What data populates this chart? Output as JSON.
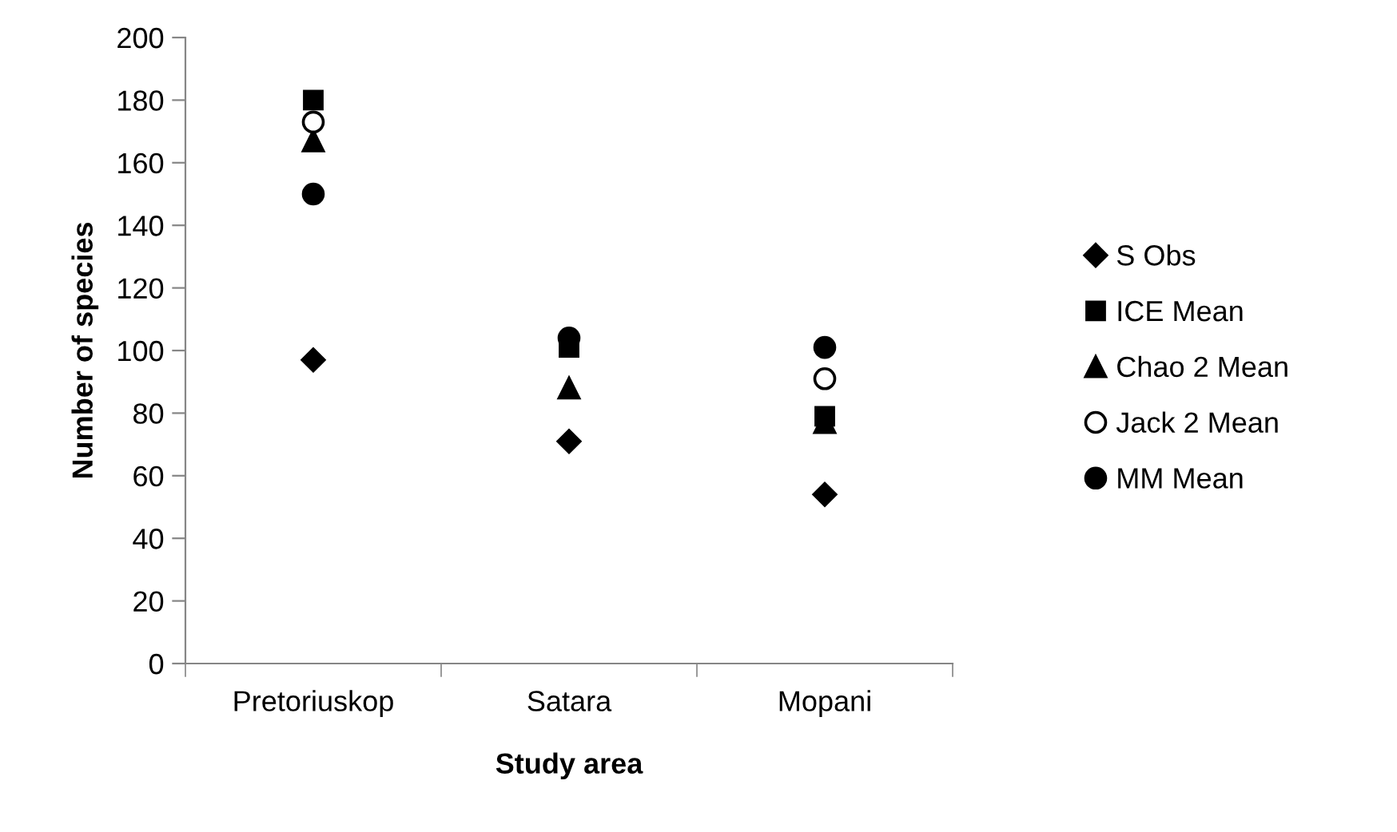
{
  "chart_data": {
    "type": "scatter",
    "xlabel": "Study area",
    "ylabel": "Number of species",
    "categories": [
      "Pretoriuskop",
      "Satara",
      "Mopani"
    ],
    "ylim": [
      0,
      200
    ],
    "yticks": [
      0,
      20,
      40,
      60,
      80,
      100,
      120,
      140,
      160,
      180,
      200
    ],
    "grid": false,
    "legend": "right",
    "series": [
      {
        "name": "S Obs",
        "color": "#000000",
        "marker": "diamond",
        "values": [
          97,
          71,
          54
        ]
      },
      {
        "name": "ICE Mean",
        "color": "#000000",
        "marker": "square",
        "values": [
          180,
          101,
          79
        ]
      },
      {
        "name": "Chao 2 Mean",
        "color": "#000000",
        "marker": "triangle",
        "values": [
          167,
          88,
          77
        ]
      },
      {
        "name": "Jack 2 Mean",
        "color": "#000000",
        "marker": "open circle",
        "values": [
          173,
          null,
          91
        ]
      },
      {
        "name": "MM Mean",
        "color": "#000000",
        "marker": "circle",
        "values": [
          150,
          104,
          101
        ]
      }
    ]
  }
}
